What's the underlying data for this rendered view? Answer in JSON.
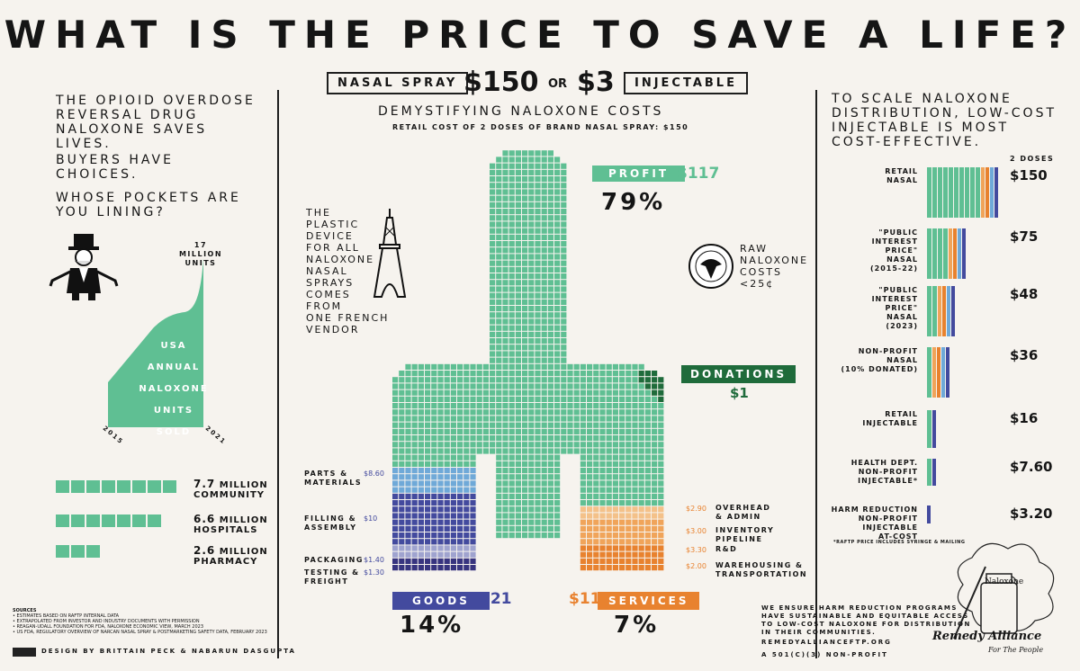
{
  "title": "WHAT IS THE PRICE TO SAVE A LIFE?",
  "header": {
    "nasal_label": "NASAL SPRAY",
    "nasal_price": "$150",
    "or": "OR",
    "inj_price": "$3",
    "inj_label": "INJECTABLE"
  },
  "left": {
    "intro": [
      "THE OPIOID OVERDOSE",
      "REVERSAL DRUG",
      "NALOXONE SAVES",
      "LIVES."
    ],
    "choices": [
      "BUYERS HAVE",
      "CHOICES."
    ],
    "question": [
      "WHOSE POCKETS ARE",
      "YOU LINING?"
    ],
    "area_top": [
      "17 MILLION",
      "UNITS"
    ],
    "area_lines": [
      "USA",
      "ANNUAL",
      "NALOXONE",
      "UNITS SOLD"
    ],
    "year_start": "2015",
    "year_end": "2021",
    "bars": [
      {
        "num": "7.7",
        "unit": "MILLION",
        "name": "COMMUNITY",
        "value": 7.7
      },
      {
        "num": "6.6",
        "unit": "MILLION",
        "name": "HOSPITALS",
        "value": 6.6
      },
      {
        "num": "2.6",
        "unit": "MILLION",
        "name": "PHARMACY",
        "value": 2.6
      }
    ],
    "sources_title": "SOURCES",
    "sources": [
      "• ESTIMATES BASED ON RAFTP INTERNAL DATA",
      "• EXTRAPOLATED FROM INVESTOR AND INDUSTRY DOCUMENTS WITH PERMISSION",
      "• REAGAN-UDALL FOUNDATION FOR FDA, NALOXONE ECONOMIC VIEW, MARCH 2023",
      "• US FDA, REGULATORY OVERVIEW OF NARCAN NASAL SPRAY & POSTMARKETING SAFETY DATA, FEBRUARY 2023"
    ],
    "credit": "DESIGN BY BRITTAIN PECK & NABARUN DASGUPTA"
  },
  "middle": {
    "heading": "DEMYSTIFYING NALOXONE COSTS",
    "subheading": "RETAIL COST OF 2 DOSES OF BRAND NASAL SPRAY: $150",
    "plastic_note": [
      "THE",
      "PLASTIC",
      "DEVICE",
      "FOR ALL",
      "NALOXONE",
      "NASAL",
      "SPRAYS",
      "COMES",
      "FROM",
      "ONE FRENCH",
      "VENDOR"
    ],
    "raw_note": [
      "RAW",
      "NALOXONE",
      "COSTS",
      "<25¢"
    ],
    "profit_label": "PROFIT",
    "profit_value": "$117",
    "profit_pct": "79%",
    "donations_label": "DONATIONS",
    "donations_value": "$1",
    "goods_label": "GOODS",
    "goods_value": "$21",
    "goods_pct": "14%",
    "services_label": "SERVICES",
    "services_value": "$11",
    "services_pct": "7%",
    "goods_items": [
      {
        "label": [
          "PARTS &",
          "MATERIALS"
        ],
        "value": "$8.60"
      },
      {
        "label": [
          "FILLING &",
          "ASSEMBLY"
        ],
        "value": "$10"
      },
      {
        "label": [
          "PACKAGING"
        ],
        "value": "$1.40"
      },
      {
        "label": [
          "TESTING &",
          "FREIGHT"
        ],
        "value": "$1.30"
      }
    ],
    "service_items": [
      {
        "label": [
          "OVERHEAD",
          "& ADMIN"
        ],
        "value": "$2.90"
      },
      {
        "label": [
          "INVENTORY",
          "PIPELINE"
        ],
        "value": "$3.00"
      },
      {
        "label": [
          "R&D"
        ],
        "value": "$3.30"
      },
      {
        "label": [
          "WAREHOUSING &",
          "TRANSPORTATION"
        ],
        "value": "$2.00"
      }
    ]
  },
  "right": {
    "intro": [
      "TO SCALE NALOXONE",
      "DISTRIBUTION, LOW-COST",
      "INJECTABLE IS MOST",
      "COST-EFFECTIVE."
    ],
    "doses_header": "2 DOSES",
    "rows": [
      {
        "label": [
          "RETAIL",
          "NASAL"
        ],
        "price": "$150"
      },
      {
        "label": [
          "\"PUBLIC",
          "INTEREST",
          "PRICE\"",
          "NASAL",
          "(2015-22)"
        ],
        "price": "$75"
      },
      {
        "label": [
          "\"PUBLIC",
          "INTEREST",
          "PRICE\"",
          "NASAL",
          "(2023)"
        ],
        "price": "$48"
      },
      {
        "label": [
          "NON-PROFIT",
          "NASAL",
          "(10% DONATED)"
        ],
        "price": "$36"
      },
      {
        "label": [
          "RETAIL",
          "INJECTABLE"
        ],
        "price": "$16"
      },
      {
        "label": [
          "HEALTH DEPT.",
          "NON-PROFIT",
          "INJECTABLE*"
        ],
        "price": "$7.60"
      },
      {
        "label": [
          "HARM REDUCTION",
          "NON-PROFIT",
          "INJECTABLE",
          "AT-COST"
        ],
        "price": "$3.20"
      }
    ],
    "footnote": "*RAFTP PRICE INCLUDES SYRINGE & MAILING",
    "mission": [
      "WE ENSURE HARM REDUCTION PROGRAMS",
      "HAVE SUSTAINABLE AND EQUITABLE ACCESS",
      "TO LOW-COST NALOXONE FOR DISTRIBUTION",
      "IN THEIR COMMUNITIES."
    ],
    "url": "REMEDYALLIANCEFTP.ORG",
    "org_type": "A 501(C)(3) NON-PROFIT",
    "logo_text": "Remedy Alliance",
    "logo_sub": "For The People",
    "vial_label": "Naloxone"
  },
  "colors": {
    "profit": "#5fbf93",
    "goods_light": "#6fa9d8",
    "goods_dark": "#434a9e",
    "goods_deep": "#37347f",
    "services_orange": "#e8822f",
    "services_light": "#f4c189",
    "donations": "#1f6b3b",
    "packaging": "#9fa3cf"
  }
}
